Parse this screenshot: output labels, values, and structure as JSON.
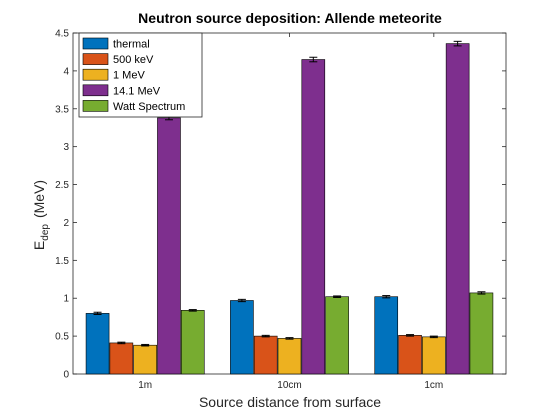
{
  "chart_data": {
    "type": "bar",
    "title": "Neutron source deposition: Allende meteorite",
    "xlabel": "Source distance from surface",
    "ylabel": {
      "main": "E",
      "sub": "dep",
      "units": "(MeV)"
    },
    "categories": [
      "1m",
      "10cm",
      "1cm"
    ],
    "ylim": [
      0,
      4.5
    ],
    "yticks": [
      "0",
      "0.5",
      "1",
      "1.5",
      "2",
      "2.5",
      "3",
      "3.5",
      "4",
      "4.5"
    ],
    "ytick_values": [
      0,
      0.5,
      1,
      1.5,
      2,
      2.5,
      3,
      3.5,
      4,
      4.5
    ],
    "grid": false,
    "legend_position": "top-left",
    "error_bars": true,
    "series": [
      {
        "name": "thermal",
        "color": "#0072BD",
        "values": [
          0.8,
          0.97,
          1.02
        ],
        "errors": [
          0.015,
          0.015,
          0.015
        ]
      },
      {
        "name": "500 keV",
        "color": "#D95319",
        "values": [
          0.41,
          0.5,
          0.51
        ],
        "errors": [
          0.01,
          0.01,
          0.01
        ]
      },
      {
        "name": "1 MeV",
        "color": "#EDB120",
        "values": [
          0.38,
          0.47,
          0.49
        ],
        "errors": [
          0.01,
          0.01,
          0.01
        ]
      },
      {
        "name": "14.1 MeV",
        "color": "#7E2F8E",
        "values": [
          3.38,
          4.15,
          4.36
        ],
        "errors": [
          0.025,
          0.03,
          0.03
        ]
      },
      {
        "name": "Watt Spectrum",
        "color": "#77AC30",
        "values": [
          0.84,
          1.02,
          1.07
        ],
        "errors": [
          0.01,
          0.01,
          0.015
        ]
      }
    ]
  }
}
